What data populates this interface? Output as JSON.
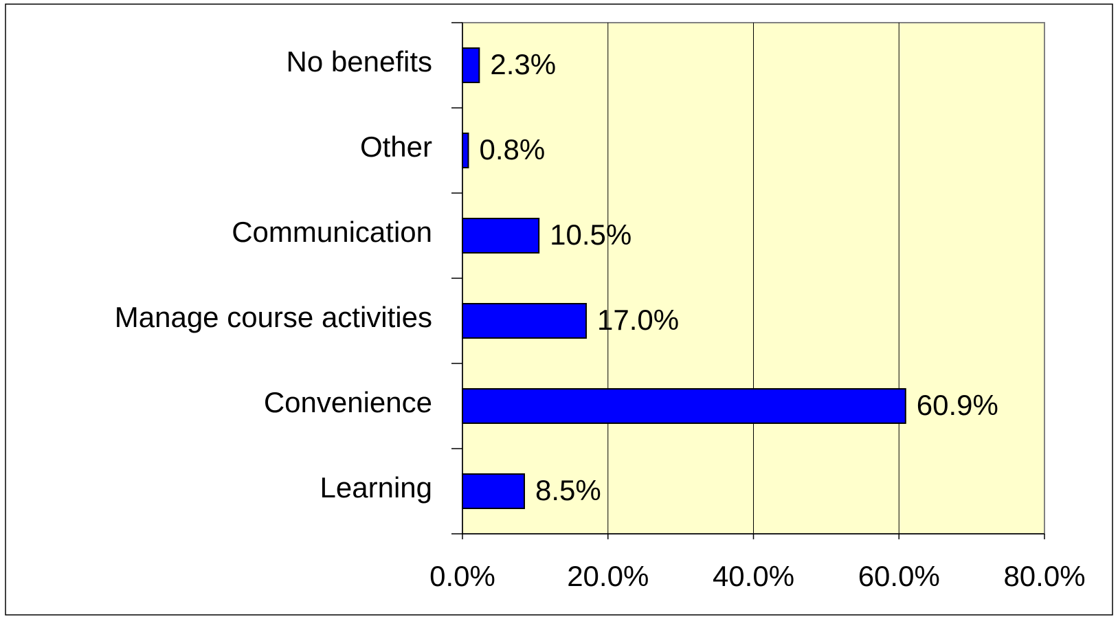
{
  "chart_data": {
    "type": "bar",
    "orientation": "horizontal",
    "categories": [
      "No benefits",
      "Other",
      "Communication",
      "Manage course activities",
      "Convenience",
      "Learning"
    ],
    "values": [
      2.3,
      0.8,
      10.5,
      17.0,
      60.9,
      8.5
    ],
    "value_labels": [
      "2.3%",
      "0.8%",
      "10.5%",
      "17.0%",
      "60.9%",
      "8.5%"
    ],
    "color": "#0000ff",
    "xlim": [
      0,
      80
    ],
    "xticks": [
      {
        "value": 0,
        "label": "0.0%"
      },
      {
        "value": 20,
        "label": "20.0%"
      },
      {
        "value": 40,
        "label": "40.0%"
      },
      {
        "value": 60,
        "label": "60.0%"
      },
      {
        "value": 80,
        "label": "80.0%"
      }
    ],
    "grid": true
  }
}
